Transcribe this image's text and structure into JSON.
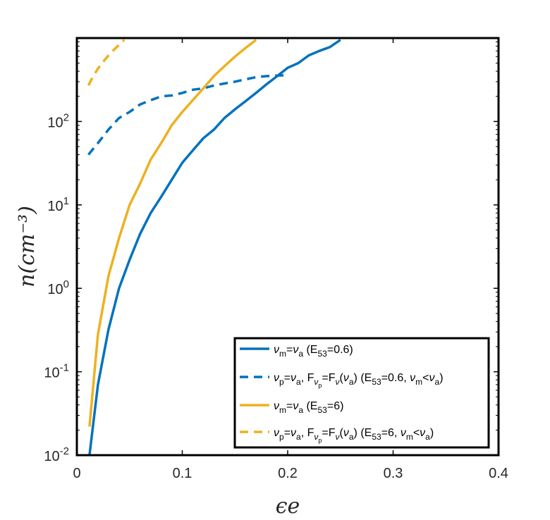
{
  "chart_data": {
    "type": "line",
    "title": "",
    "xlabel": "ϵe",
    "ylabel": "n(cm⁻³)",
    "xlim": [
      0,
      0.4
    ],
    "ylim": [
      0.01,
      1000
    ],
    "yscale": "log",
    "grid": false,
    "legend_position": "bottom-right",
    "x_ticks": [
      {
        "value": 0,
        "label": "0"
      },
      {
        "value": 0.1,
        "label": "0.1"
      },
      {
        "value": 0.2,
        "label": "0.2"
      },
      {
        "value": 0.3,
        "label": "0.3"
      },
      {
        "value": 0.4,
        "label": "0.4"
      }
    ],
    "y_ticks": [
      {
        "value": 0.01,
        "base": "10",
        "exp": "-2"
      },
      {
        "value": 0.1,
        "base": "10",
        "exp": "-1"
      },
      {
        "value": 1,
        "base": "10",
        "exp": "0"
      },
      {
        "value": 10,
        "base": "10",
        "exp": "1"
      },
      {
        "value": 100,
        "base": "10",
        "exp": "2"
      }
    ],
    "series": [
      {
        "name": "νm=νa (E53=0.6)",
        "color": "#0072BD",
        "dash": "solid",
        "x": [
          0.012,
          0.02,
          0.03,
          0.04,
          0.05,
          0.06,
          0.07,
          0.08,
          0.09,
          0.1,
          0.11,
          0.12,
          0.13,
          0.14,
          0.15,
          0.16,
          0.17,
          0.18,
          0.19,
          0.2,
          0.21,
          0.22,
          0.23,
          0.24,
          0.25
        ],
        "y": [
          0.01,
          0.07,
          0.32,
          1.0,
          2.2,
          4.5,
          8.0,
          12.5,
          20,
          32,
          45,
          63,
          80,
          110,
          140,
          175,
          220,
          280,
          350,
          440,
          500,
          620,
          700,
          780,
          950
        ]
      },
      {
        "name": "νp=νa, Fνp=Fν(νa) (E53=0.6, νm<νa)",
        "color": "#0072BD",
        "dash": "dashed",
        "x": [
          0.011,
          0.02,
          0.03,
          0.04,
          0.05,
          0.06,
          0.07,
          0.08,
          0.09,
          0.1,
          0.11,
          0.12,
          0.13,
          0.14,
          0.15,
          0.16,
          0.17,
          0.18,
          0.19,
          0.2
        ],
        "y": [
          40,
          55,
          80,
          110,
          130,
          160,
          180,
          200,
          205,
          220,
          240,
          250,
          270,
          285,
          300,
          320,
          340,
          350,
          355,
          360
        ]
      },
      {
        "name": "νm=νa (E53=6)",
        "color": "#EDB120",
        "dash": "solid",
        "x": [
          0.012,
          0.02,
          0.03,
          0.04,
          0.05,
          0.06,
          0.07,
          0.08,
          0.09,
          0.1,
          0.11,
          0.12,
          0.13,
          0.14,
          0.15,
          0.16,
          0.17
        ],
        "y": [
          0.022,
          0.28,
          1.4,
          4.0,
          10,
          18,
          35,
          55,
          90,
          130,
          180,
          250,
          350,
          460,
          600,
          760,
          950
        ]
      },
      {
        "name": "νp=νa, Fνp=Fν(νa) (E53=6, νm<νa)",
        "color": "#EDB120",
        "dash": "dashed",
        "x": [
          0.011,
          0.015,
          0.02,
          0.025,
          0.03,
          0.035,
          0.04,
          0.045
        ],
        "y": [
          270,
          340,
          430,
          520,
          620,
          720,
          830,
          950
        ]
      }
    ],
    "legend": [
      {
        "color": "#0072BD",
        "dash": "solid",
        "parts": [
          [
            "ν",
            "i"
          ],
          [
            "m",
            "sub"
          ],
          [
            "=",
            ""
          ],
          [
            "ν",
            "i"
          ],
          [
            "a",
            "sub"
          ],
          [
            " (E",
            ""
          ],
          [
            "53",
            "sub"
          ],
          [
            "=0.6)",
            ""
          ]
        ]
      },
      {
        "color": "#0072BD",
        "dash": "dashed",
        "parts": [
          [
            "ν",
            "i"
          ],
          [
            "p",
            "sub"
          ],
          [
            "=",
            ""
          ],
          [
            "ν",
            "i"
          ],
          [
            "a",
            "sub"
          ],
          [
            ", F",
            ""
          ],
          [
            "ν",
            "subi"
          ],
          [
            "p",
            "subsub"
          ],
          [
            "=F",
            ""
          ],
          [
            "ν",
            "subi"
          ],
          [
            "(",
            ""
          ],
          [
            "ν",
            "i"
          ],
          [
            "a",
            "sub"
          ],
          [
            ") (E",
            ""
          ],
          [
            "53",
            "sub"
          ],
          [
            "=0.6, ",
            ""
          ],
          [
            "ν",
            "i"
          ],
          [
            "m",
            "sub"
          ],
          [
            "<",
            ""
          ],
          [
            "ν",
            "i"
          ],
          [
            "a",
            "sub"
          ],
          [
            ")",
            ""
          ]
        ]
      },
      {
        "color": "#EDB120",
        "dash": "solid",
        "parts": [
          [
            "ν",
            "i"
          ],
          [
            "m",
            "sub"
          ],
          [
            "=",
            ""
          ],
          [
            "ν",
            "i"
          ],
          [
            "a",
            "sub"
          ],
          [
            " (E",
            ""
          ],
          [
            "53",
            "sub"
          ],
          [
            "=6)",
            ""
          ]
        ]
      },
      {
        "color": "#EDB120",
        "dash": "dashed",
        "parts": [
          [
            "ν",
            "i"
          ],
          [
            "p",
            "sub"
          ],
          [
            "=",
            ""
          ],
          [
            "ν",
            "i"
          ],
          [
            "a",
            "sub"
          ],
          [
            ", F",
            ""
          ],
          [
            "ν",
            "subi"
          ],
          [
            "p",
            "subsub"
          ],
          [
            "=F",
            ""
          ],
          [
            "ν",
            "subi"
          ],
          [
            "(",
            ""
          ],
          [
            "ν",
            "i"
          ],
          [
            "a",
            "sub"
          ],
          [
            ") (E",
            ""
          ],
          [
            "53",
            "sub"
          ],
          [
            "=6, ",
            ""
          ],
          [
            "ν",
            "i"
          ],
          [
            "m",
            "sub"
          ],
          [
            "<",
            ""
          ],
          [
            "ν",
            "i"
          ],
          [
            "a",
            "sub"
          ],
          [
            ")",
            ""
          ]
        ]
      }
    ]
  }
}
